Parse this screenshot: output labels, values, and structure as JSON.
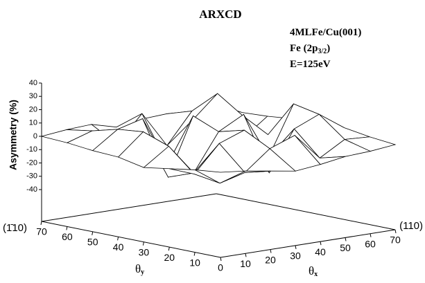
{
  "chart_data": {
    "type": "surface",
    "title": "ARXCD",
    "annotations": [
      [
        "4MLFe/Cu(001)"
      ],
      [
        "Fe (2p",
        "3/2",
        ")"
      ],
      [
        "E=125eV"
      ]
    ],
    "zlabel": "Asymmetry (%)",
    "xlabel": [
      "θ",
      "x"
    ],
    "ylabel": [
      "θ",
      "y"
    ],
    "x_corner_label": "(110)",
    "y_corner_label": "(1̄10)",
    "x": [
      0,
      10,
      20,
      30,
      40,
      50,
      60,
      70
    ],
    "y": [
      0,
      10,
      20,
      30,
      40,
      50,
      60,
      70
    ],
    "z": [
      [
        0,
        -2,
        -5,
        -8,
        -6,
        -3,
        -2,
        0
      ],
      [
        -2,
        -15,
        -10,
        5,
        12,
        -8,
        3,
        2
      ],
      [
        -5,
        -12,
        8,
        15,
        -20,
        10,
        18,
        5
      ],
      [
        -8,
        5,
        -18,
        10,
        20,
        -15,
        22,
        3
      ],
      [
        -4,
        12,
        -25,
        18,
        -10,
        12,
        -5,
        4
      ],
      [
        -3,
        10,
        15,
        -22,
        8,
        25,
        -12,
        2
      ],
      [
        -1,
        5,
        -8,
        12,
        -15,
        8,
        10,
        1
      ],
      [
        0,
        2,
        3,
        -2,
        1,
        2,
        1,
        0
      ]
    ],
    "xlim": [
      0,
      70
    ],
    "ylim": [
      0,
      70
    ],
    "zlim": [
      -40,
      40
    ],
    "xticks": [
      0,
      10,
      20,
      30,
      40,
      50,
      60,
      70
    ],
    "yticks": [
      10,
      20,
      30,
      40,
      50,
      60,
      70
    ],
    "zticks": [
      -40,
      -30,
      -20,
      -10,
      0,
      10,
      20,
      30,
      40
    ]
  }
}
